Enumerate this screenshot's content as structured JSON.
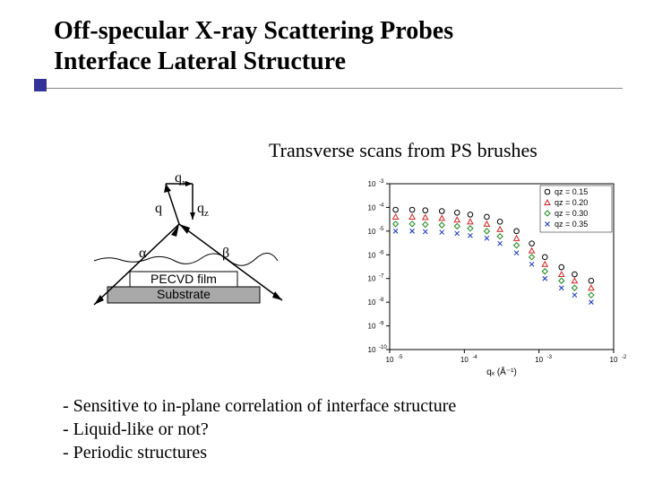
{
  "title_line1": "Off-specular X-ray Scattering Probes",
  "title_line2": "Interface Lateral Structure",
  "subtitle": "Transverse scans from PS brushes",
  "diagram": {
    "qx": "q",
    "qx_sub": "x",
    "q": "q",
    "qz": "q",
    "qz_sub": "z",
    "alpha": "α",
    "beta": "β",
    "film_label": "PECVD film",
    "substrate_label": "Substrate",
    "colors": {
      "film_fill": "#c0c0c0",
      "substrate_fill": "#a9a9a9",
      "arrow": "#000000",
      "surface_line": "#000000"
    }
  },
  "chart": {
    "type": "scatter-loglog",
    "xlabel": "qₓ (Å⁻¹)",
    "ylabel": "",
    "xlim": [
      1e-05,
      0.01
    ],
    "ylim": [
      1e-10,
      0.001
    ],
    "xticks": [
      1e-05,
      0.0001,
      0.001,
      0.01
    ],
    "yticks": [
      1e-10,
      1e-09,
      1e-08,
      1e-07,
      1e-06,
      1e-05,
      0.0001,
      0.001
    ],
    "legend": [
      {
        "label": "qz = 0.15",
        "marker": "circle",
        "color": "#000000"
      },
      {
        "label": "qz = 0.20",
        "marker": "triangle",
        "color": "#d62020"
      },
      {
        "label": "qz = 0.30",
        "marker": "diamond",
        "color": "#1a8a1a"
      },
      {
        "label": "qz = 0.35",
        "marker": "x",
        "color": "#1030c0"
      }
    ],
    "background_color": "#ffffff",
    "border_color": "#000000",
    "series": [
      {
        "marker": "circle",
        "color": "#000000",
        "x": [
          1.2e-05,
          2e-05,
          3e-05,
          5e-05,
          8e-05,
          0.00012,
          0.0002,
          0.0003,
          0.0005,
          0.0008,
          0.0012,
          0.002,
          0.003,
          0.005
        ],
        "y": [
          8e-05,
          8e-05,
          7.5e-05,
          7e-05,
          6e-05,
          5e-05,
          4e-05,
          2.5e-05,
          1e-05,
          3e-06,
          8e-07,
          3e-07,
          1.5e-07,
          8e-08
        ]
      },
      {
        "marker": "triangle",
        "color": "#d62020",
        "x": [
          1.2e-05,
          2e-05,
          3e-05,
          5e-05,
          8e-05,
          0.00012,
          0.0002,
          0.0003,
          0.0005,
          0.0008,
          0.0012,
          0.002,
          0.003,
          0.005
        ],
        "y": [
          4e-05,
          4e-05,
          3.8e-05,
          3.5e-05,
          3e-05,
          2.5e-05,
          2e-05,
          1.2e-05,
          5e-06,
          1.5e-06,
          4e-07,
          1.5e-07,
          8e-08,
          4e-08
        ]
      },
      {
        "marker": "diamond",
        "color": "#1a8a1a",
        "x": [
          1.2e-05,
          2e-05,
          3e-05,
          5e-05,
          8e-05,
          0.00012,
          0.0002,
          0.0003,
          0.0005,
          0.0008,
          0.0012,
          0.002,
          0.003,
          0.005
        ],
        "y": [
          2e-05,
          2e-05,
          1.9e-05,
          1.8e-05,
          1.6e-05,
          1.3e-05,
          1e-05,
          6e-06,
          2.5e-06,
          8e-07,
          2e-07,
          8e-08,
          4e-08,
          2e-08
        ]
      },
      {
        "marker": "x",
        "color": "#1030c0",
        "x": [
          1.2e-05,
          2e-05,
          3e-05,
          5e-05,
          8e-05,
          0.00012,
          0.0002,
          0.0003,
          0.0005,
          0.0008,
          0.0012,
          0.002,
          0.003,
          0.005
        ],
        "y": [
          1e-05,
          1e-05,
          9.5e-06,
          9e-06,
          8e-06,
          6.5e-06,
          5e-06,
          3e-06,
          1.2e-06,
          4e-07,
          1e-07,
          4e-08,
          2e-08,
          1e-08
        ]
      }
    ]
  },
  "bullets": [
    "- Sensitive to in-plane correlation of interface structure",
    "- Liquid-like or not?",
    "- Periodic structures"
  ]
}
